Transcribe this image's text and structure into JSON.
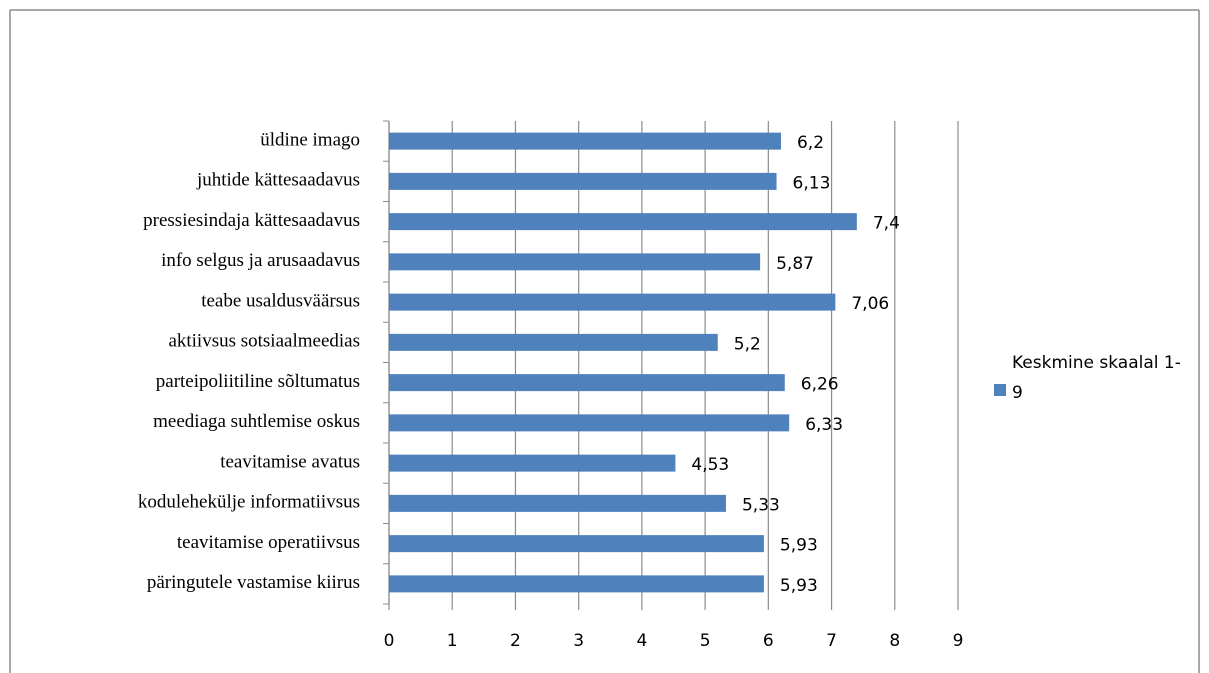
{
  "chart_data": {
    "type": "bar",
    "orientation": "horizontal",
    "categories": [
      "üldine imago",
      "juhtide kättesaadavus",
      "pressiesindaja kättesaadavus",
      "info selgus ja arusaadavus",
      "teabe usaldusväärsus",
      "aktiivsus sotsiaalmeedias",
      "parteipoliitiline sõltumatus",
      "meediaga suhtlemise oskus",
      "teavitamise avatus",
      "kodulehekülje informatiivsus",
      "teavitamise operatiivsus",
      "päringutele vastamise kiirus"
    ],
    "series": [
      {
        "name": "Keskmine skaalal 1-9",
        "color": "#4f81bd",
        "values": [
          6.2,
          6.13,
          7.4,
          5.87,
          7.06,
          5.2,
          6.26,
          6.33,
          4.53,
          5.33,
          5.93,
          5.93
        ],
        "value_labels": [
          "6,2",
          "6,13",
          "7,4",
          "5,87",
          "7,06",
          "5,2",
          "6,26",
          "6,33",
          "4,53",
          "5,33",
          "5,93",
          "5,93"
        ]
      }
    ],
    "xlim": [
      0,
      9
    ],
    "xticks": [
      0,
      1,
      2,
      3,
      4,
      5,
      6,
      7,
      8,
      9
    ],
    "grid": true,
    "legend": "right"
  }
}
